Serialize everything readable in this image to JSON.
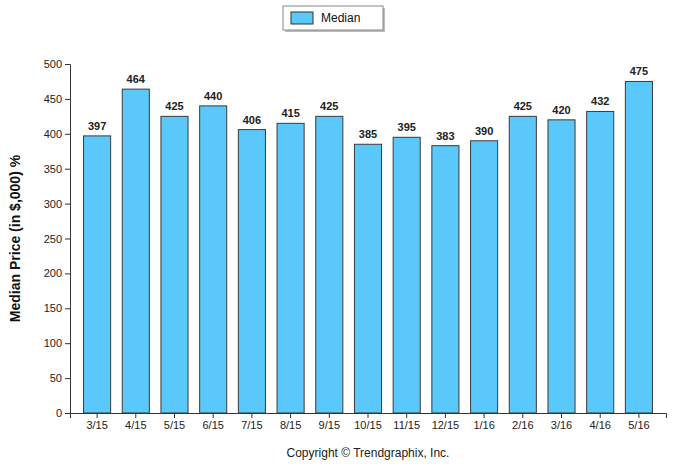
{
  "chart_data": {
    "type": "bar",
    "categories": [
      "3/15",
      "4/15",
      "5/15",
      "6/15",
      "7/15",
      "8/15",
      "9/15",
      "10/15",
      "11/15",
      "12/15",
      "1/16",
      "2/16",
      "3/16",
      "4/16",
      "5/16"
    ],
    "series": [
      {
        "name": "Median",
        "color": "#5ac8fa",
        "values": [
          397,
          464,
          425,
          440,
          406,
          415,
          425,
          385,
          395,
          383,
          390,
          425,
          420,
          432,
          475
        ]
      }
    ],
    "y_label": "Median Price (in $,000) %",
    "annotations": [
      "Copyright © Trendgraphix, Inc."
    ],
    "ylim": [
      0,
      500
    ],
    "yticks": [
      0,
      50,
      100,
      150,
      200,
      250,
      300,
      350,
      400,
      450,
      500
    ],
    "grid": false,
    "legend": "top",
    "data_labels": true
  }
}
